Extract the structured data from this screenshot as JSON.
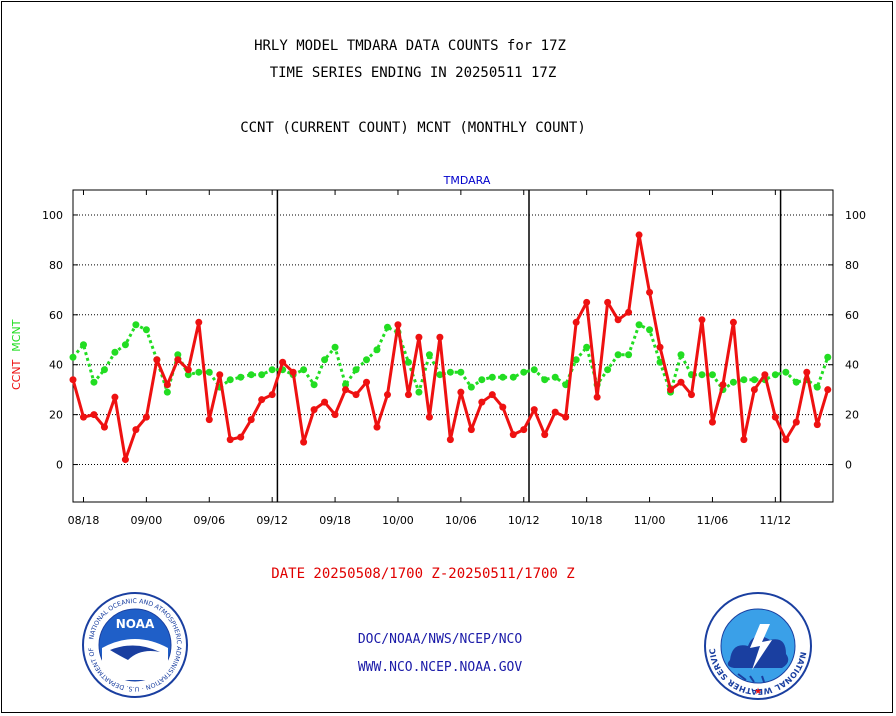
{
  "titles": {
    "line1": "HRLY MODEL TMDARA DATA COUNTS for 17Z",
    "line2": "TIME SERIES ENDING IN 20250511 17Z",
    "line3": "CCNT (CURRENT COUNT) MCNT (MONTHLY COUNT)"
  },
  "footer": {
    "date_range": "DATE 20250508/1700 Z-20250511/1700 Z",
    "org": "DOC/NOAA/NWS/NCEP/NCO",
    "url": "WWW.NCO.NCEP.NOAA.GOV"
  },
  "logos": {
    "noaa": {
      "center_text": "NOAA",
      "ring_text": "NATIONAL OCEANIC AND ATMOSPHERIC ADMINISTRATION · U.S. DEPARTMENT OF COMMERCE"
    },
    "nws": {
      "ring_text": "NATIONAL WEATHER SERVICE"
    }
  },
  "colors": {
    "ccnt": "#ee1111",
    "mcnt": "#22dd22",
    "chart_title": "#0000cc",
    "footer_date": "#e00000",
    "footer_links": "#1a1aa8"
  },
  "chart_data": {
    "type": "line",
    "title": "TMDARA",
    "ylabel_left": [
      {
        "text": "CCNT",
        "color": "#ee1111"
      },
      {
        "text": "MCNT",
        "color": "#22dd22"
      }
    ],
    "ylim": [
      -15,
      110
    ],
    "yticks": [
      0,
      20,
      40,
      60,
      80,
      100
    ],
    "xlim": [
      0,
      72.5
    ],
    "xticks": [
      {
        "x": 1,
        "label": "08/18"
      },
      {
        "x": 7,
        "label": "09/00"
      },
      {
        "x": 13,
        "label": "09/06"
      },
      {
        "x": 19,
        "label": "09/12"
      },
      {
        "x": 25,
        "label": "09/18"
      },
      {
        "x": 31,
        "label": "10/00"
      },
      {
        "x": 37,
        "label": "10/06"
      },
      {
        "x": 43,
        "label": "10/12"
      },
      {
        "x": 49,
        "label": "10/18"
      },
      {
        "x": 55,
        "label": "11/00"
      },
      {
        "x": 61,
        "label": "11/06"
      },
      {
        "x": 67,
        "label": "11/12"
      }
    ],
    "day_dividers": [
      19.5,
      43.5,
      67.5
    ],
    "grid": true,
    "series": [
      {
        "name": "CCNT",
        "color": "#ee1111",
        "values": [
          34,
          19,
          20,
          15,
          27,
          2,
          14,
          19,
          42,
          32,
          42,
          38,
          57,
          18,
          36,
          10,
          11,
          18,
          26,
          28,
          41,
          37,
          9,
          22,
          25,
          20,
          30,
          28,
          33,
          15,
          28,
          56,
          28,
          51,
          19,
          51,
          10,
          29,
          14,
          25,
          28,
          23,
          12,
          14,
          22,
          12,
          21,
          19,
          57,
          65,
          27,
          65,
          58,
          61,
          92,
          69,
          47,
          30,
          33,
          28,
          58,
          17,
          32,
          57,
          10,
          30,
          36,
          19,
          10,
          17,
          37,
          16,
          30
        ]
      },
      {
        "name": "MCNT",
        "color": "#22dd22",
        "values": [
          43,
          48,
          33,
          38,
          45,
          48,
          56,
          54,
          42,
          29,
          44,
          36,
          37,
          37,
          31,
          34,
          35,
          36,
          36,
          38,
          38,
          36,
          38,
          32,
          42,
          47,
          32,
          38,
          42,
          46,
          55,
          53,
          41,
          29,
          44,
          36,
          37,
          37,
          31,
          34,
          35,
          35,
          35,
          37,
          38,
          34,
          35,
          32,
          42,
          47,
          32,
          38,
          44,
          44,
          56,
          54,
          41,
          29,
          44,
          36,
          36,
          36,
          30,
          33,
          34,
          34,
          34,
          36,
          37,
          33,
          34,
          31,
          43
        ]
      }
    ]
  }
}
